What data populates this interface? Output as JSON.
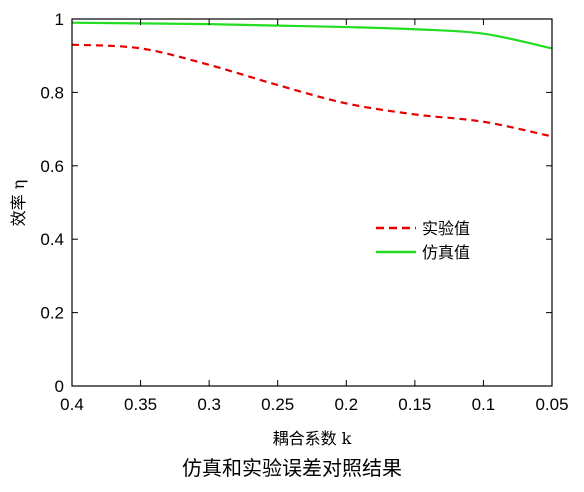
{
  "caption": "仿真和实验误差对照结果",
  "chart_data": {
    "type": "line",
    "title": "",
    "xlabel": "耦合系数 k",
    "ylabel": "效率 η",
    "x": [
      0.4,
      0.35,
      0.3,
      0.25,
      0.2,
      0.15,
      0.1,
      0.05
    ],
    "x_reversed": true,
    "xlim": [
      0.4,
      0.05
    ],
    "ylim": [
      0,
      1
    ],
    "x_ticks": [
      "0.4",
      "0.35",
      "0.3",
      "0.25",
      "0.2",
      "0.15",
      "0.1",
      "0.05"
    ],
    "y_ticks": [
      "0",
      "0.2",
      "0.4",
      "0.6",
      "0.8",
      "1"
    ],
    "y_tick_values": [
      0,
      0.2,
      0.4,
      0.6,
      0.8,
      1
    ],
    "grid": false,
    "legend_position": "center-right",
    "series": [
      {
        "name": "实验值",
        "values": [
          0.93,
          0.92,
          0.875,
          0.82,
          0.77,
          0.74,
          0.72,
          0.68
        ],
        "color": "#e60000",
        "style": "dashed"
      },
      {
        "name": "仿真值",
        "values": [
          0.99,
          0.988,
          0.986,
          0.982,
          0.978,
          0.972,
          0.96,
          0.92
        ],
        "color": "#22dd22",
        "style": "solid"
      }
    ]
  }
}
